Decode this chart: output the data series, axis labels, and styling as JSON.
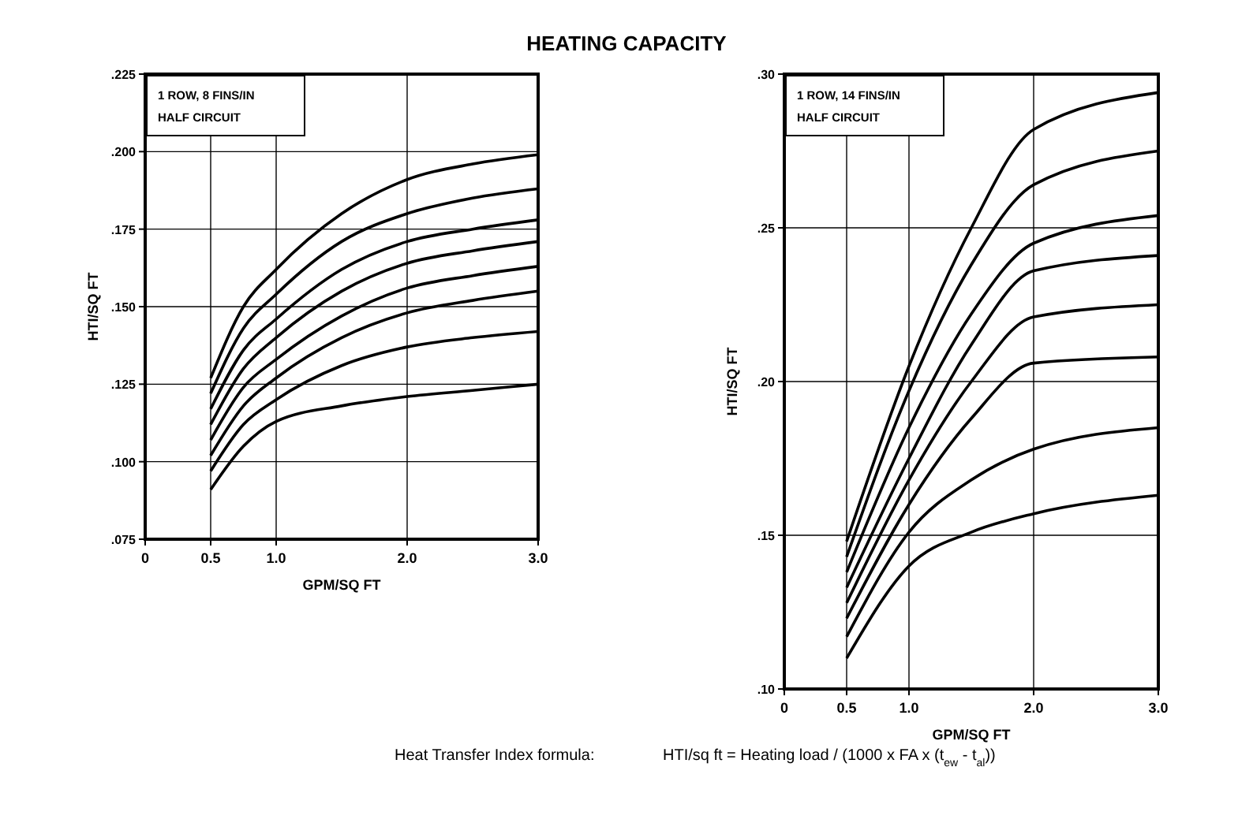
{
  "chart_data": [
    {
      "type": "line",
      "title": "HEATING CAPACITY",
      "xlabel": "GPM/SQ FT",
      "ylabel": "HTI/SQ FT",
      "xlim": [
        0,
        3
      ],
      "xticks": [
        0,
        {
          "value": 0.5,
          "label": "0.5"
        },
        {
          "value": 1,
          "label": "1.0"
        },
        {
          "value": 2,
          "label": "2.0"
        },
        {
          "value": 3,
          "label": "3.0"
        }
      ],
      "ylim": [
        0.075,
        0.225
      ],
      "yticks": [
        {
          "value": 0.075,
          "label": ".075"
        },
        {
          "value": 0.1,
          "label": ".100"
        },
        {
          "value": 0.125,
          "label": ".125"
        },
        {
          "value": 0.15,
          "label": ".150"
        },
        {
          "value": 0.175,
          "label": ".175"
        },
        {
          "value": 0.2,
          "label": ".200"
        },
        {
          "value": 0.225,
          "label": ".225"
        }
      ],
      "grid": true,
      "marker": "none",
      "line_style": "solid",
      "x": [
        0.5,
        0.75,
        1,
        1.5,
        2,
        2.5,
        3
      ],
      "annotations": [
        "1 ROW, 8 FINS/IN\nHALF CIRCUIT",
        "Heat Transfer Index formula:",
        "HTI/sq ft = Heating load / (1000 x FA x (t$_{ew}$ - t$_{al}$))"
      ],
      "series": [
        {
          "color": "#000000",
          "values": [
            0.127,
            0.15,
            0.162,
            0.18,
            0.191,
            0.196,
            0.199
          ]
        },
        {
          "color": "#000000",
          "values": [
            0.122,
            0.143,
            0.154,
            0.171,
            0.18,
            0.185,
            0.188
          ]
        },
        {
          "color": "#000000",
          "values": [
            0.117,
            0.136,
            0.146,
            0.162,
            0.171,
            0.175,
            0.178
          ]
        },
        {
          "color": "#000000",
          "values": [
            0.112,
            0.13,
            0.14,
            0.155,
            0.164,
            0.168,
            0.171
          ]
        },
        {
          "color": "#000000",
          "values": [
            0.107,
            0.124,
            0.133,
            0.147,
            0.156,
            0.16,
            0.163
          ]
        },
        {
          "color": "#000000",
          "values": [
            0.102,
            0.118,
            0.127,
            0.14,
            0.148,
            0.152,
            0.155
          ]
        },
        {
          "color": "#000000",
          "values": [
            0.097,
            0.112,
            0.12,
            0.131,
            0.137,
            0.14,
            0.142
          ]
        },
        {
          "color": "#000000",
          "values": [
            0.091,
            0.105,
            0.113,
            0.118,
            0.121,
            0.123,
            0.125
          ]
        }
      ]
    },
    {
      "type": "line",
      "xlabel": "GPM/SQ FT",
      "ylabel": "HTI/SQ FT",
      "xlim": [
        0,
        3
      ],
      "xticks": [
        0,
        {
          "value": 0.5,
          "label": "0.5"
        },
        {
          "value": 1,
          "label": "1.0"
        },
        {
          "value": 2,
          "label": "2.0"
        },
        {
          "value": 3,
          "label": "3.0"
        }
      ],
      "ylim": [
        0.1,
        0.3
      ],
      "yticks": [
        {
          "value": 0.1,
          "label": ".10"
        },
        {
          "value": 0.15,
          "label": ".15"
        },
        {
          "value": 0.2,
          "label": ".20"
        },
        {
          "value": 0.25,
          "label": ".25"
        },
        {
          "value": 0.3,
          "label": ".30"
        }
      ],
      "grid": true,
      "marker": "none",
      "line_style": "solid",
      "x": [
        0.5,
        1,
        1.5,
        2,
        3
      ],
      "annotations": [
        "1 ROW, 14 FINS/IN\nHALF CIRCUIT"
      ],
      "series": [
        {
          "color": "#000000",
          "values": [
            0.148,
            0.205,
            0.25,
            0.282,
            0.294
          ]
        },
        {
          "color": "#000000",
          "values": [
            0.143,
            0.197,
            0.238,
            0.264,
            0.275
          ]
        },
        {
          "color": "#000000",
          "values": [
            0.138,
            0.185,
            0.222,
            0.245,
            0.254
          ]
        },
        {
          "color": "#000000",
          "values": [
            0.133,
            0.175,
            0.212,
            0.236,
            0.241
          ]
        },
        {
          "color": "#000000",
          "values": [
            0.128,
            0.168,
            0.2,
            0.221,
            0.225
          ]
        },
        {
          "color": "#000000",
          "values": [
            0.123,
            0.16,
            0.188,
            0.206,
            0.208
          ]
        },
        {
          "color": "#000000",
          "values": [
            0.117,
            0.151,
            0.168,
            0.178,
            0.185
          ]
        },
        {
          "color": "#000000",
          "values": [
            0.11,
            0.14,
            0.151,
            0.157,
            0.163
          ]
        }
      ]
    }
  ]
}
